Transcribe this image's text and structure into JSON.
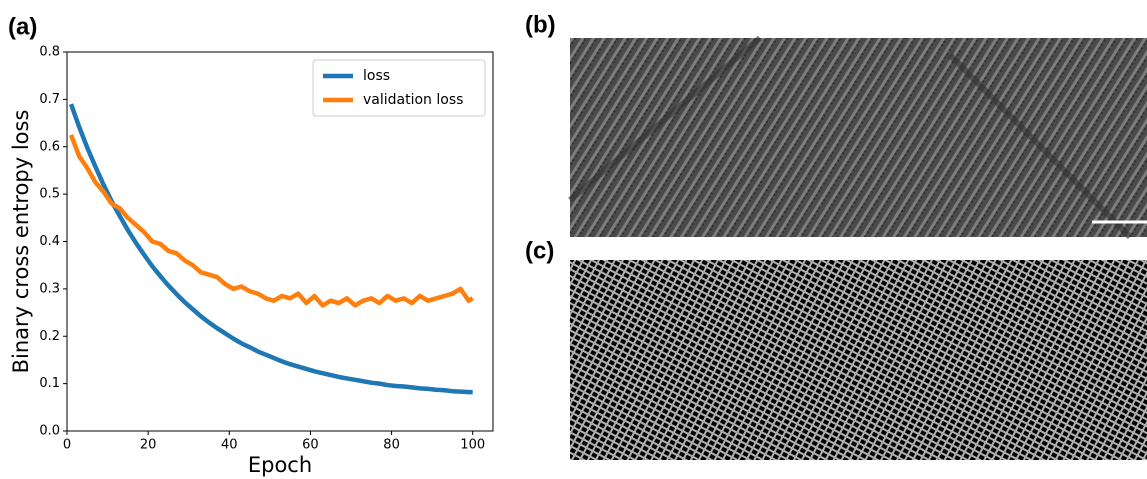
{
  "panel_labels": [
    "(a)",
    "(b)",
    "(c)"
  ],
  "chart_data": {
    "type": "line",
    "x_label": "Epoch",
    "y_label": "Binary cross entropy loss",
    "x": [
      1,
      3,
      5,
      7,
      9,
      11,
      13,
      15,
      17,
      19,
      21,
      23,
      25,
      27,
      29,
      31,
      33,
      35,
      37,
      39,
      41,
      43,
      45,
      47,
      49,
      51,
      53,
      55,
      57,
      59,
      61,
      63,
      65,
      67,
      69,
      71,
      73,
      75,
      77,
      79,
      81,
      83,
      85,
      87,
      89,
      91,
      93,
      95,
      97,
      99,
      100
    ],
    "series": [
      {
        "name": "loss",
        "color": "#1f77b4",
        "values": [
          0.69,
          0.642,
          0.598,
          0.558,
          0.52,
          0.485,
          0.454,
          0.424,
          0.397,
          0.372,
          0.348,
          0.327,
          0.307,
          0.289,
          0.272,
          0.257,
          0.242,
          0.229,
          0.217,
          0.206,
          0.195,
          0.185,
          0.177,
          0.168,
          0.161,
          0.154,
          0.147,
          0.141,
          0.136,
          0.131,
          0.126,
          0.122,
          0.118,
          0.114,
          0.111,
          0.108,
          0.105,
          0.102,
          0.1,
          0.097,
          0.095,
          0.094,
          0.092,
          0.09,
          0.089,
          0.087,
          0.086,
          0.084,
          0.083,
          0.082,
          0.082
        ]
      },
      {
        "name": "validation loss",
        "color": "#ff7f0e",
        "values": [
          0.625,
          0.58,
          0.555,
          0.525,
          0.505,
          0.48,
          0.47,
          0.45,
          0.435,
          0.42,
          0.4,
          0.395,
          0.38,
          0.375,
          0.36,
          0.35,
          0.335,
          0.33,
          0.325,
          0.31,
          0.3,
          0.305,
          0.295,
          0.29,
          0.28,
          0.275,
          0.285,
          0.28,
          0.29,
          0.27,
          0.285,
          0.265,
          0.275,
          0.27,
          0.28,
          0.265,
          0.275,
          0.28,
          0.27,
          0.285,
          0.275,
          0.28,
          0.27,
          0.285,
          0.275,
          0.28,
          0.285,
          0.29,
          0.3,
          0.275,
          0.28
        ]
      }
    ],
    "xlim": [
      0,
      105
    ],
    "xticks": [
      0,
      20,
      40,
      60,
      80,
      100
    ],
    "ylim": [
      0,
      0.8
    ],
    "yticks": [
      {
        "value": 0,
        "label": "0.0"
      },
      0.1,
      0.2,
      0.3,
      0.4,
      0.5,
      0.6,
      0.7,
      0.8
    ],
    "legend": "upper right"
  }
}
